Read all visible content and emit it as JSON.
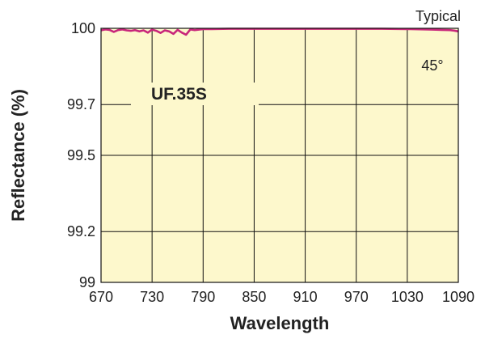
{
  "chart_data": {
    "type": "line",
    "title": "",
    "xlabel": "Wavelength",
    "ylabel": "Reflectance (%)",
    "xlim": [
      670,
      1090
    ],
    "ylim": [
      99,
      100
    ],
    "x_ticks": [
      670,
      730,
      790,
      850,
      910,
      970,
      1030,
      1090
    ],
    "y_ticks": [
      99,
      99.2,
      99.5,
      99.7,
      100
    ],
    "x_tick_labels": [
      "670",
      "730",
      "790",
      "850",
      "910",
      "970",
      "1030",
      "1090"
    ],
    "y_tick_labels": [
      "99",
      "99.2",
      "99.5",
      "99.7",
      "100"
    ],
    "grid": true,
    "annotations": {
      "corner_note": "Typical",
      "product": "UF.35S",
      "angle": "45°"
    },
    "colors": {
      "plot_background": "#fdf8cc",
      "line": "#c8267a",
      "grid": "#111111"
    },
    "series": [
      {
        "x": [
          670,
          675,
          680,
          685,
          690,
          695,
          700,
          705,
          710,
          715,
          720,
          725,
          730,
          735,
          740,
          745,
          750,
          755,
          760,
          765,
          770,
          775,
          780,
          785,
          790,
          800,
          820,
          850,
          880,
          910,
          940,
          970,
          1000,
          1030,
          1050,
          1060,
          1070,
          1080,
          1085,
          1090
        ],
        "y": [
          99.992,
          99.996,
          99.994,
          99.986,
          99.993,
          99.996,
          99.992,
          99.99,
          99.993,
          99.988,
          99.992,
          99.983,
          99.995,
          99.99,
          99.982,
          99.992,
          99.988,
          99.978,
          99.994,
          99.983,
          99.975,
          99.996,
          99.993,
          99.995,
          99.997,
          99.997,
          99.998,
          99.998,
          99.998,
          99.998,
          99.998,
          99.998,
          99.998,
          99.997,
          99.996,
          99.995,
          99.994,
          99.993,
          99.991,
          99.988
        ]
      }
    ]
  }
}
